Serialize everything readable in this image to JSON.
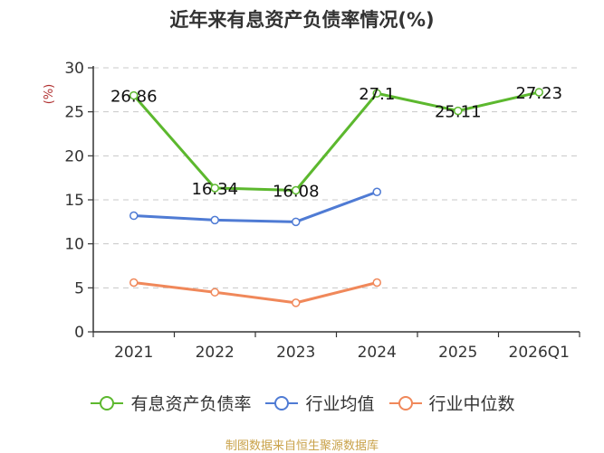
{
  "chart_data": {
    "type": "line",
    "title": "近年来有息资产负债率情况(%)",
    "ylabel": "(%)",
    "xlabel": "",
    "ylim": [
      0,
      30
    ],
    "yticks": [
      "0",
      "5",
      "10",
      "15",
      "20",
      "25",
      "30"
    ],
    "categories": [
      "2021",
      "2022",
      "2023",
      "2024",
      "2025",
      "2026Q1"
    ],
    "grid": true,
    "legend_position": "bottom",
    "series": [
      {
        "name": "有息资产负债率",
        "color": "#5cb82e",
        "values": [
          26.86,
          16.34,
          16.08,
          27.1,
          25.11,
          27.23
        ],
        "labels": [
          "26.86",
          "16.34",
          "16.08",
          "27.1",
          "25.11",
          "27.23"
        ]
      },
      {
        "name": "行业均值",
        "color": "#4f7bd4",
        "values": [
          13.2,
          12.7,
          12.5,
          15.9,
          null,
          null
        ]
      },
      {
        "name": "行业中位数",
        "color": "#f0885a",
        "values": [
          5.6,
          4.5,
          3.3,
          5.6,
          null,
          null
        ]
      }
    ]
  },
  "source": "制图数据来自恒生聚源数据库"
}
